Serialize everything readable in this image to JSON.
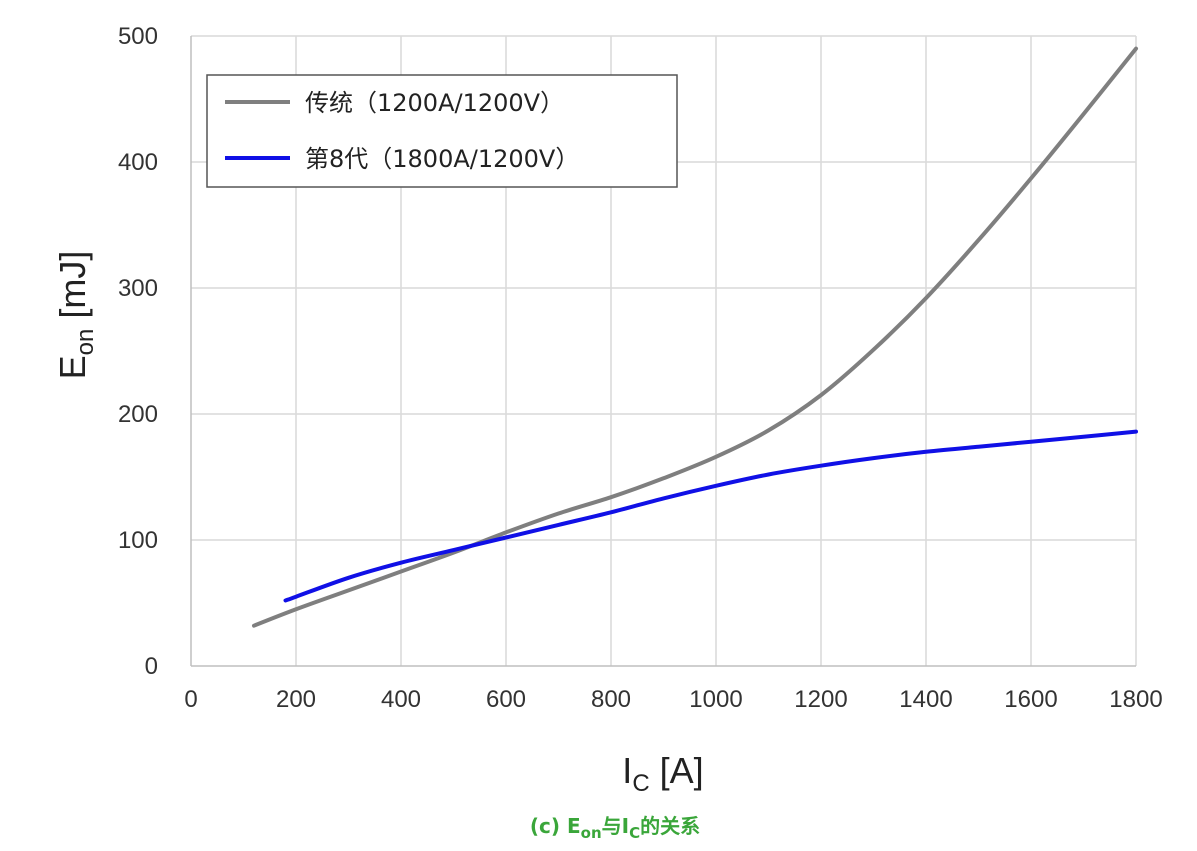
{
  "chart_data": {
    "type": "line",
    "x_title": {
      "main": "I",
      "sub": "C",
      "unit": " [A]"
    },
    "y_title": {
      "main": "E",
      "sub": "on",
      "unit": " [mJ]"
    },
    "xlim": [
      0,
      1800
    ],
    "ylim": [
      0,
      500
    ],
    "x_ticks": [
      0,
      200,
      400,
      600,
      800,
      1000,
      1200,
      1400,
      1600,
      1800
    ],
    "y_ticks": [
      0,
      100,
      200,
      300,
      400,
      500
    ],
    "grid": true,
    "legend_position": "top-left",
    "series": [
      {
        "name": "传统（1200A/1200V）",
        "color": "#7f7f7f",
        "x": [
          120,
          200,
          300,
          400,
          500,
          600,
          700,
          800,
          900,
          1000,
          1100,
          1200,
          1300,
          1400,
          1500,
          1600,
          1700,
          1800
        ],
        "y": [
          32,
          45,
          60,
          75,
          90,
          106,
          121,
          134,
          149,
          166,
          187,
          215,
          251,
          292,
          338,
          387,
          438,
          490
        ]
      },
      {
        "name": "第8代（1800A/1200V）",
        "color": "#1010e6",
        "x": [
          180,
          200,
          300,
          400,
          500,
          600,
          700,
          800,
          900,
          1000,
          1100,
          1200,
          1300,
          1400,
          1500,
          1600,
          1700,
          1800
        ],
        "y": [
          52,
          55,
          70,
          82,
          92,
          102,
          112,
          122,
          133,
          143,
          152,
          159,
          165,
          170,
          174,
          178,
          182,
          186
        ]
      }
    ]
  },
  "caption": {
    "prefix": "(c) E",
    "sub1": "on",
    "middle": "与I",
    "sub2": "C",
    "suffix": "的关系"
  }
}
